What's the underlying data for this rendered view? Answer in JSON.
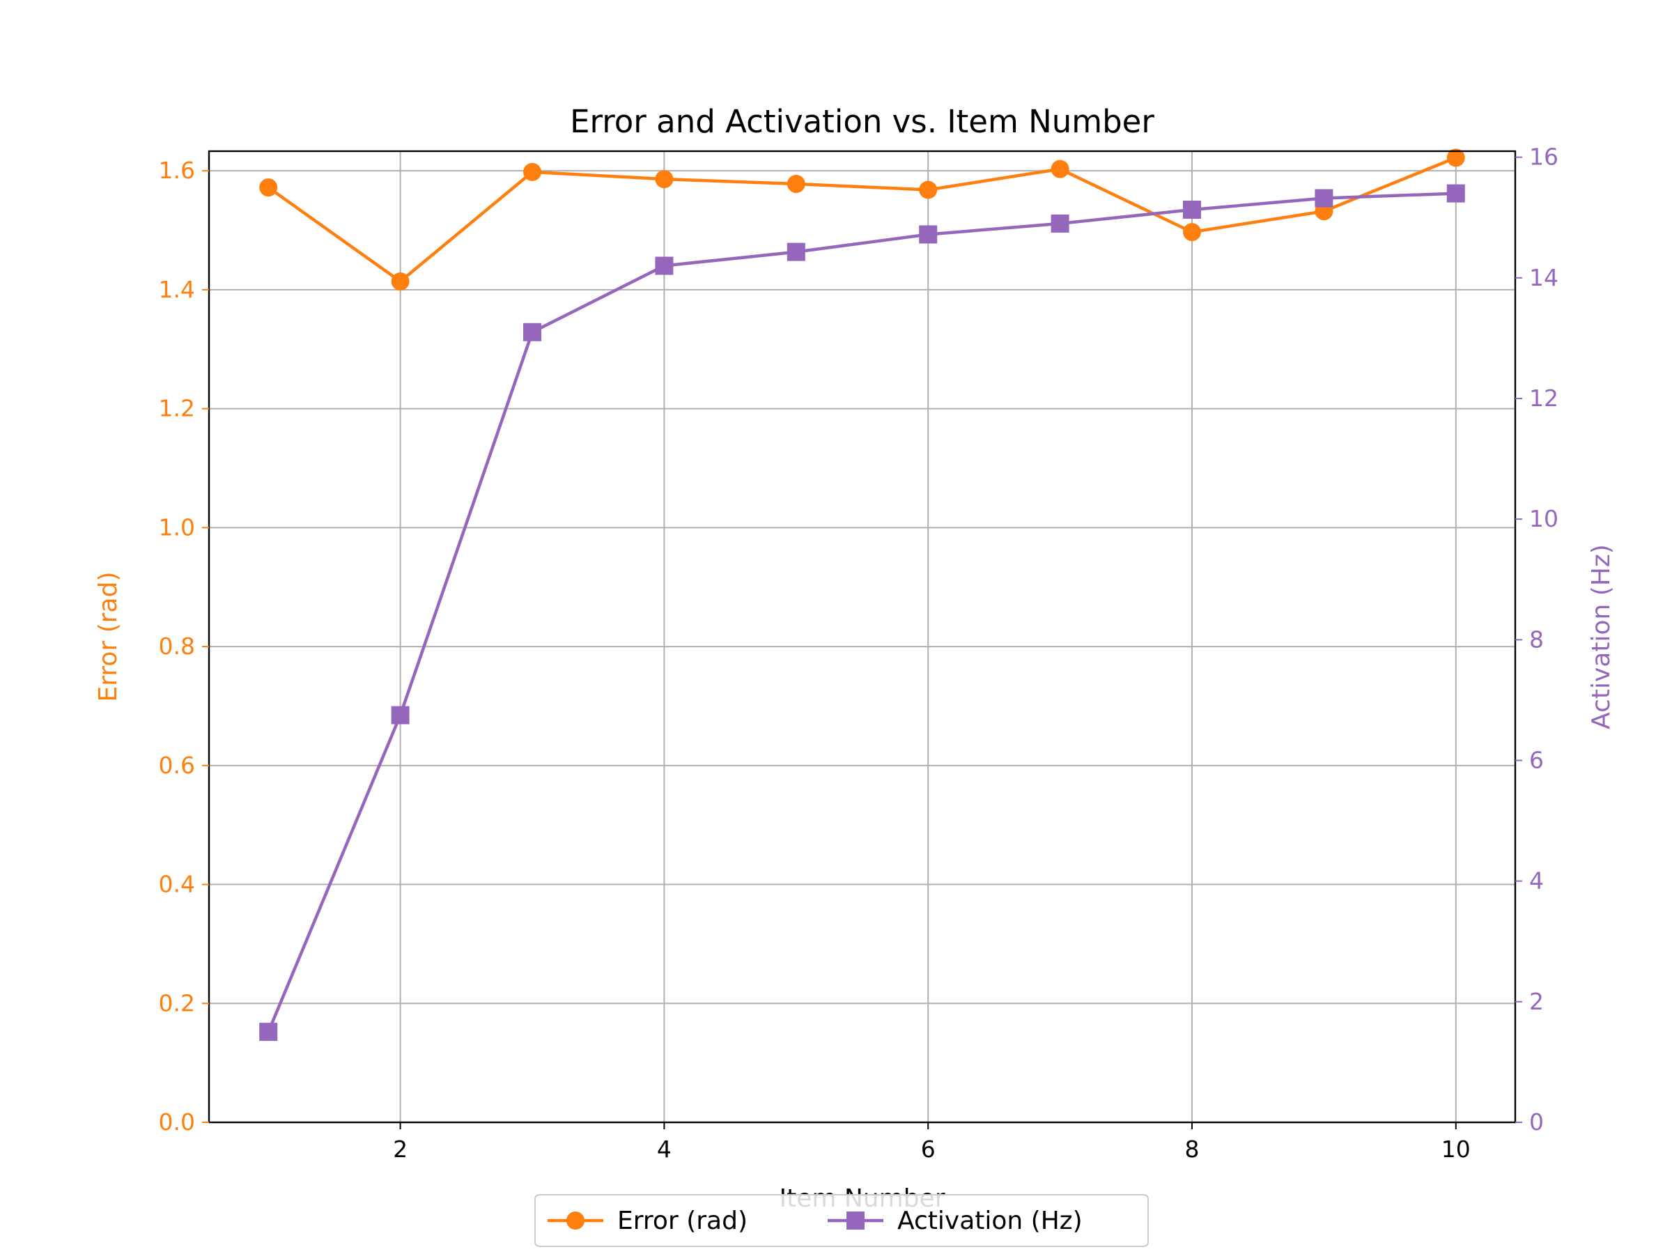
{
  "chart_data": {
    "type": "line",
    "title": "Error and Activation vs. Item Number",
    "xlabel": "Item Number",
    "ylabel": "Error (rad)",
    "ylabel_right": "Activation (Hz)",
    "x": [
      1,
      2,
      3,
      4,
      5,
      6,
      7,
      8,
      9,
      10
    ],
    "xticks": [
      "2",
      "4",
      "6",
      "8",
      "10"
    ],
    "xlim": [
      0.55,
      10.45
    ],
    "ylim": [
      0,
      1.633
    ],
    "ylim_right": [
      0,
      16.1
    ],
    "yticks": [
      "0.0",
      "0.2",
      "0.4",
      "0.6",
      "0.8",
      "1.0",
      "1.2",
      "1.4",
      "1.6"
    ],
    "yticks_right": [
      "0",
      "2",
      "4",
      "6",
      "8",
      "10",
      "12",
      "14",
      "16"
    ],
    "grid": true,
    "legend_position": "bottom-center",
    "series": [
      {
        "name": "Error (rad)",
        "axis": "left",
        "marker": "circle",
        "color": "#ff7f0e",
        "values": [
          1.572,
          1.414,
          1.598,
          1.586,
          1.578,
          1.568,
          1.603,
          1.497,
          1.532,
          1.622
        ]
      },
      {
        "name": "Activation (Hz)",
        "axis": "right",
        "marker": "square",
        "color": "#9467bd",
        "values": [
          1.5,
          6.75,
          13.1,
          14.2,
          14.43,
          14.72,
          14.9,
          15.13,
          15.32,
          15.4
        ]
      }
    ]
  },
  "colors": {
    "left_axis": "#ff7f0e",
    "right_axis": "#9467bd",
    "grid": "#b0b0b0"
  }
}
